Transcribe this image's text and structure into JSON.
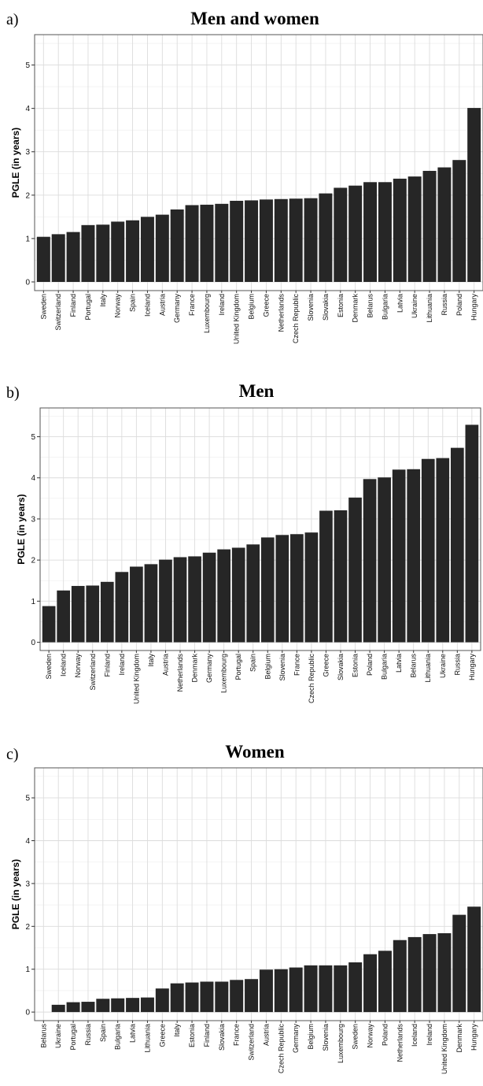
{
  "colors": {
    "bar": "#262626",
    "background": "#ffffff"
  },
  "chart_data": [
    {
      "type": "bar",
      "panel_label": "a)",
      "title": "Men and women",
      "xlabel": "",
      "ylabel": "PGLE (in years)",
      "ylim": [
        -0.2,
        5.7
      ],
      "yticks": [
        0,
        1,
        2,
        3,
        4,
        5
      ],
      "grid": true,
      "categories": [
        "Sweden",
        "Switzerland",
        "Finland",
        "Portugal",
        "Italy",
        "Norway",
        "Spain",
        "Iceland",
        "Austria",
        "Germany",
        "France",
        "Luxembourg",
        "Ireland",
        "United Kingdom",
        "Belgium",
        "Greece",
        "Netherlands",
        "Czech Republic",
        "Slovenia",
        "Slovakia",
        "Estonia",
        "Denmark",
        "Belarus",
        "Bulgaria",
        "Latvia",
        "Ukraine",
        "Lithuania",
        "Russia",
        "Poland",
        "Hungary"
      ],
      "values": [
        1.04,
        1.1,
        1.15,
        1.31,
        1.32,
        1.39,
        1.42,
        1.5,
        1.55,
        1.67,
        1.77,
        1.78,
        1.8,
        1.87,
        1.88,
        1.9,
        1.91,
        1.92,
        1.93,
        2.04,
        2.17,
        2.22,
        2.3,
        2.3,
        2.38,
        2.43,
        2.56,
        2.64,
        2.81,
        4.01
      ]
    },
    {
      "type": "bar",
      "panel_label": "b)",
      "title": "Men",
      "xlabel": "",
      "ylabel": "PGLE (in years)",
      "ylim": [
        -0.2,
        5.7
      ],
      "yticks": [
        0,
        1,
        2,
        3,
        4,
        5
      ],
      "grid": true,
      "categories": [
        "Sweden",
        "Iceland",
        "Norway",
        "Switzerland",
        "Finland",
        "Ireland",
        "United Kingdom",
        "Italy",
        "Austria",
        "Netherlands",
        "Denmark",
        "Germany",
        "Luxembourg",
        "Portugal",
        "Spain",
        "Belgium",
        "Slovenia",
        "France",
        "Czech Republic",
        "Greece",
        "Slovakia",
        "Estonia",
        "Poland",
        "Bulgaria",
        "Latvia",
        "Belarus",
        "Lithuania",
        "Ukraine",
        "Russia",
        "Hungary"
      ],
      "values": [
        0.88,
        1.26,
        1.37,
        1.38,
        1.47,
        1.71,
        1.84,
        1.9,
        2.01,
        2.07,
        2.09,
        2.18,
        2.26,
        2.3,
        2.38,
        2.55,
        2.61,
        2.63,
        2.67,
        3.2,
        3.21,
        3.52,
        3.97,
        4.01,
        4.2,
        4.21,
        4.46,
        4.48,
        4.73,
        5.29
      ]
    },
    {
      "type": "bar",
      "panel_label": "c)",
      "title": "Women",
      "xlabel": "",
      "ylabel": "PGLE (in years)",
      "ylim": [
        -0.2,
        5.7
      ],
      "yticks": [
        0,
        1,
        2,
        3,
        4,
        5
      ],
      "grid": true,
      "categories": [
        "Belarus",
        "Ukraine",
        "Portugal",
        "Russia",
        "Spain",
        "Bulgaria",
        "Latvia",
        "Lithuania",
        "Greece",
        "Italy",
        "Estonia",
        "Finland",
        "Slovakia",
        "France",
        "Switzerland",
        "Austria",
        "Czech Republic",
        "Germany",
        "Belgium",
        "Slovenia",
        "Luxembourg",
        "Sweden",
        "Norway",
        "Poland",
        "Netherlands",
        "Iceland",
        "Ireland",
        "United Kingdom",
        "Denmark",
        "Hungary"
      ],
      "values": [
        0.0,
        0.17,
        0.23,
        0.24,
        0.31,
        0.32,
        0.33,
        0.34,
        0.55,
        0.67,
        0.69,
        0.71,
        0.71,
        0.75,
        0.77,
        0.99,
        1.0,
        1.04,
        1.09,
        1.09,
        1.09,
        1.16,
        1.35,
        1.43,
        1.68,
        1.75,
        1.82,
        1.84,
        2.27,
        2.46
      ]
    }
  ]
}
